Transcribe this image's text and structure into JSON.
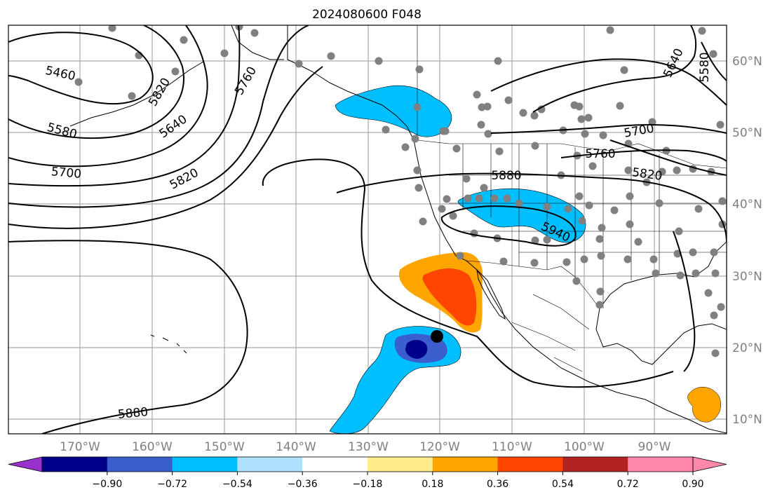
{
  "title": "2024080600 F048",
  "map": {
    "lon_labels": [
      "170°W",
      "160°W",
      "150°W",
      "140°W",
      "130°W",
      "120°W",
      "110°W",
      "100°W",
      "90°W"
    ],
    "lat_labels": [
      "60°N",
      "50°N",
      "40°N",
      "30°N",
      "20°N",
      "10°N"
    ],
    "contour_labels": [
      "5460",
      "5580",
      "5640",
      "5700",
      "5760",
      "5820",
      "5880",
      "5880",
      "5940",
      "5820",
      "5760",
      "5700",
      "5640",
      "5580",
      "5820"
    ],
    "storm_marker": "black circle",
    "station_marker": "grey dot",
    "colors": {
      "contour": "#000000",
      "grid": "#aaaaaa",
      "land_outline": "#000000"
    }
  },
  "colorbar": {
    "tick_labels": [
      "−0.90",
      "−0.72",
      "−0.54",
      "−0.36",
      "−0.18",
      "0.18",
      "0.36",
      "0.54",
      "0.72",
      "0.90"
    ],
    "colors": [
      "#9932cc",
      "#00008b",
      "#3a5fcd",
      "#00bfff",
      "#b0e2ff",
      "#ffffff",
      "#ffec8b",
      "#ffa500",
      "#ff4500",
      "#b22222",
      "#ff88aa"
    ]
  }
}
